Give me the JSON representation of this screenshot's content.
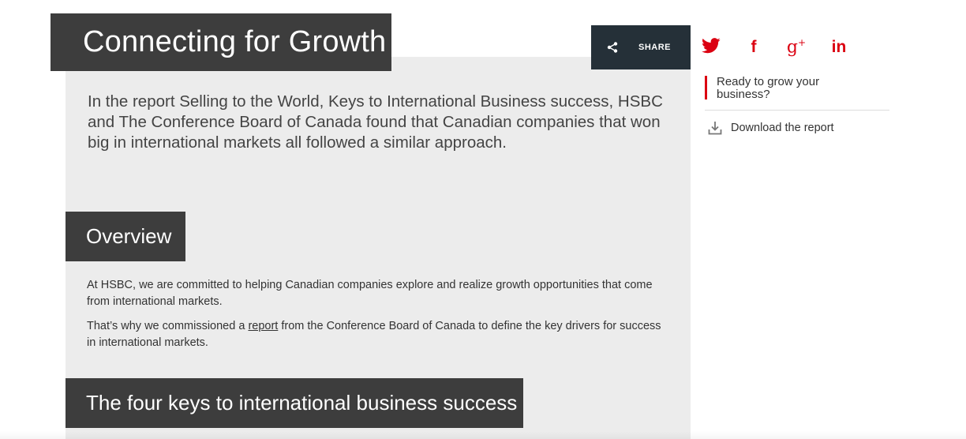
{
  "page": {
    "title": "Connecting for Growth",
    "intro": "In the report Selling to the World, Keys to International Business success, HSBC and The Conference Board of Canada found that Canadian companies that won big in international markets all followed a similar approach."
  },
  "overview": {
    "heading": "Overview",
    "paragraph1": "At HSBC, we are committed to helping Canadian companies explore and realize growth opportunities that come from international markets.",
    "paragraph2_before": "That’s why we commissioned a ",
    "paragraph2_link": "report",
    "paragraph2_after": " from the Conference Board of Canada to define the key drivers for success in international markets."
  },
  "keys": {
    "heading": "The four keys to international business success"
  },
  "share": {
    "label": "SHARE",
    "icon": "share-icon",
    "networks": [
      {
        "name": "twitter",
        "icon": "twitter-icon"
      },
      {
        "name": "facebook",
        "icon": "facebook-icon",
        "glyph": "f"
      },
      {
        "name": "google-plus",
        "icon": "google-plus-icon",
        "glyph": "g",
        "sup": "+"
      },
      {
        "name": "linkedin",
        "icon": "linkedin-icon",
        "glyph": "in"
      }
    ]
  },
  "sidebar": {
    "grow_text": "Ready to grow your business?",
    "download_label": "Download the report",
    "download_icon": "download-icon"
  },
  "colors": {
    "accent": "#db0011",
    "dark_box": "#3d3d3d",
    "share_bg": "#253038",
    "panel_bg": "#ececec"
  }
}
